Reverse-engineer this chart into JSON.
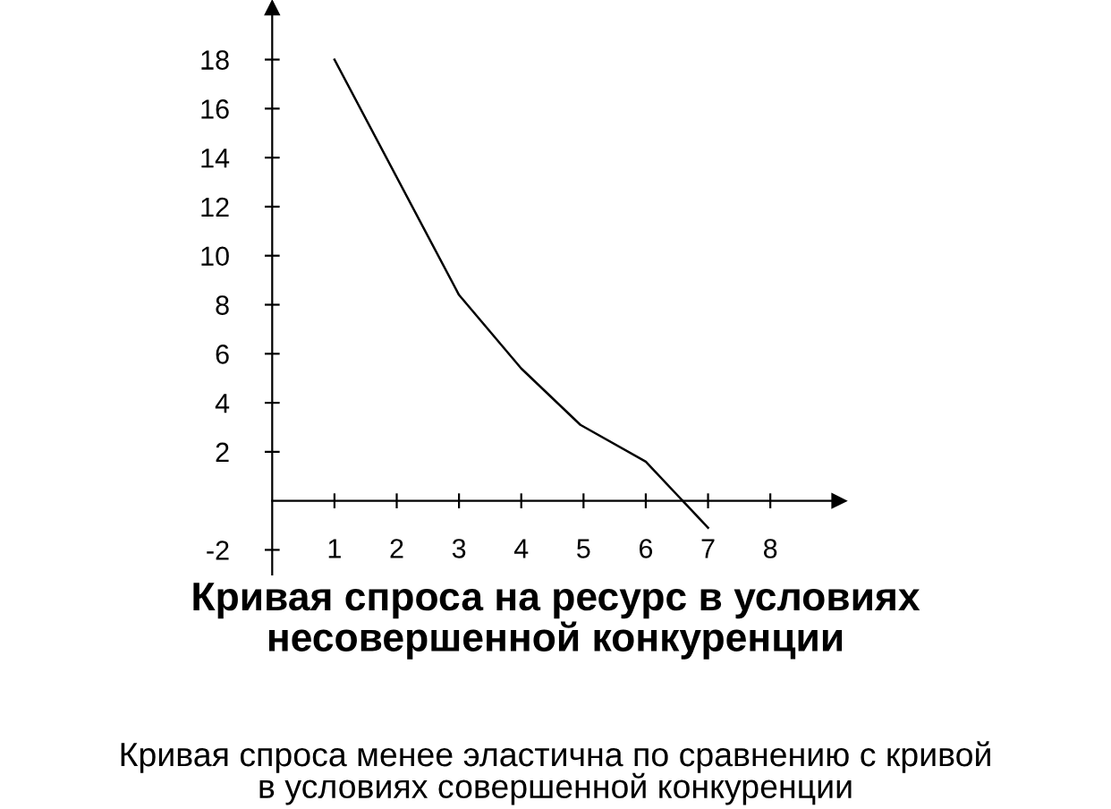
{
  "chart_data": {
    "type": "line",
    "title": "Кривая спроса на ресурс в условиях\nнесовершенной конкуренции",
    "annotations": [
      "Кривая спроса менее эластична по сравнению с кривой\nв условиях совершенной конкуренции"
    ],
    "x": [
      1,
      3,
      4,
      4.95,
      6,
      7
    ],
    "series": [
      {
        "color": "#000000",
        "values": [
          18,
          8.4,
          5.4,
          3.1,
          1.6,
          -1.1
        ]
      }
    ],
    "xlim": [
      0,
      9.1
    ],
    "ylim": [
      -3,
      20.1
    ],
    "xticks": [
      1,
      2,
      3,
      4,
      5,
      6,
      7,
      8
    ],
    "yticks": [
      -2,
      2,
      4,
      6,
      8,
      10,
      12,
      14,
      16,
      18
    ],
    "grid": false,
    "legend": false,
    "marker": "none",
    "line_style": "solid"
  }
}
